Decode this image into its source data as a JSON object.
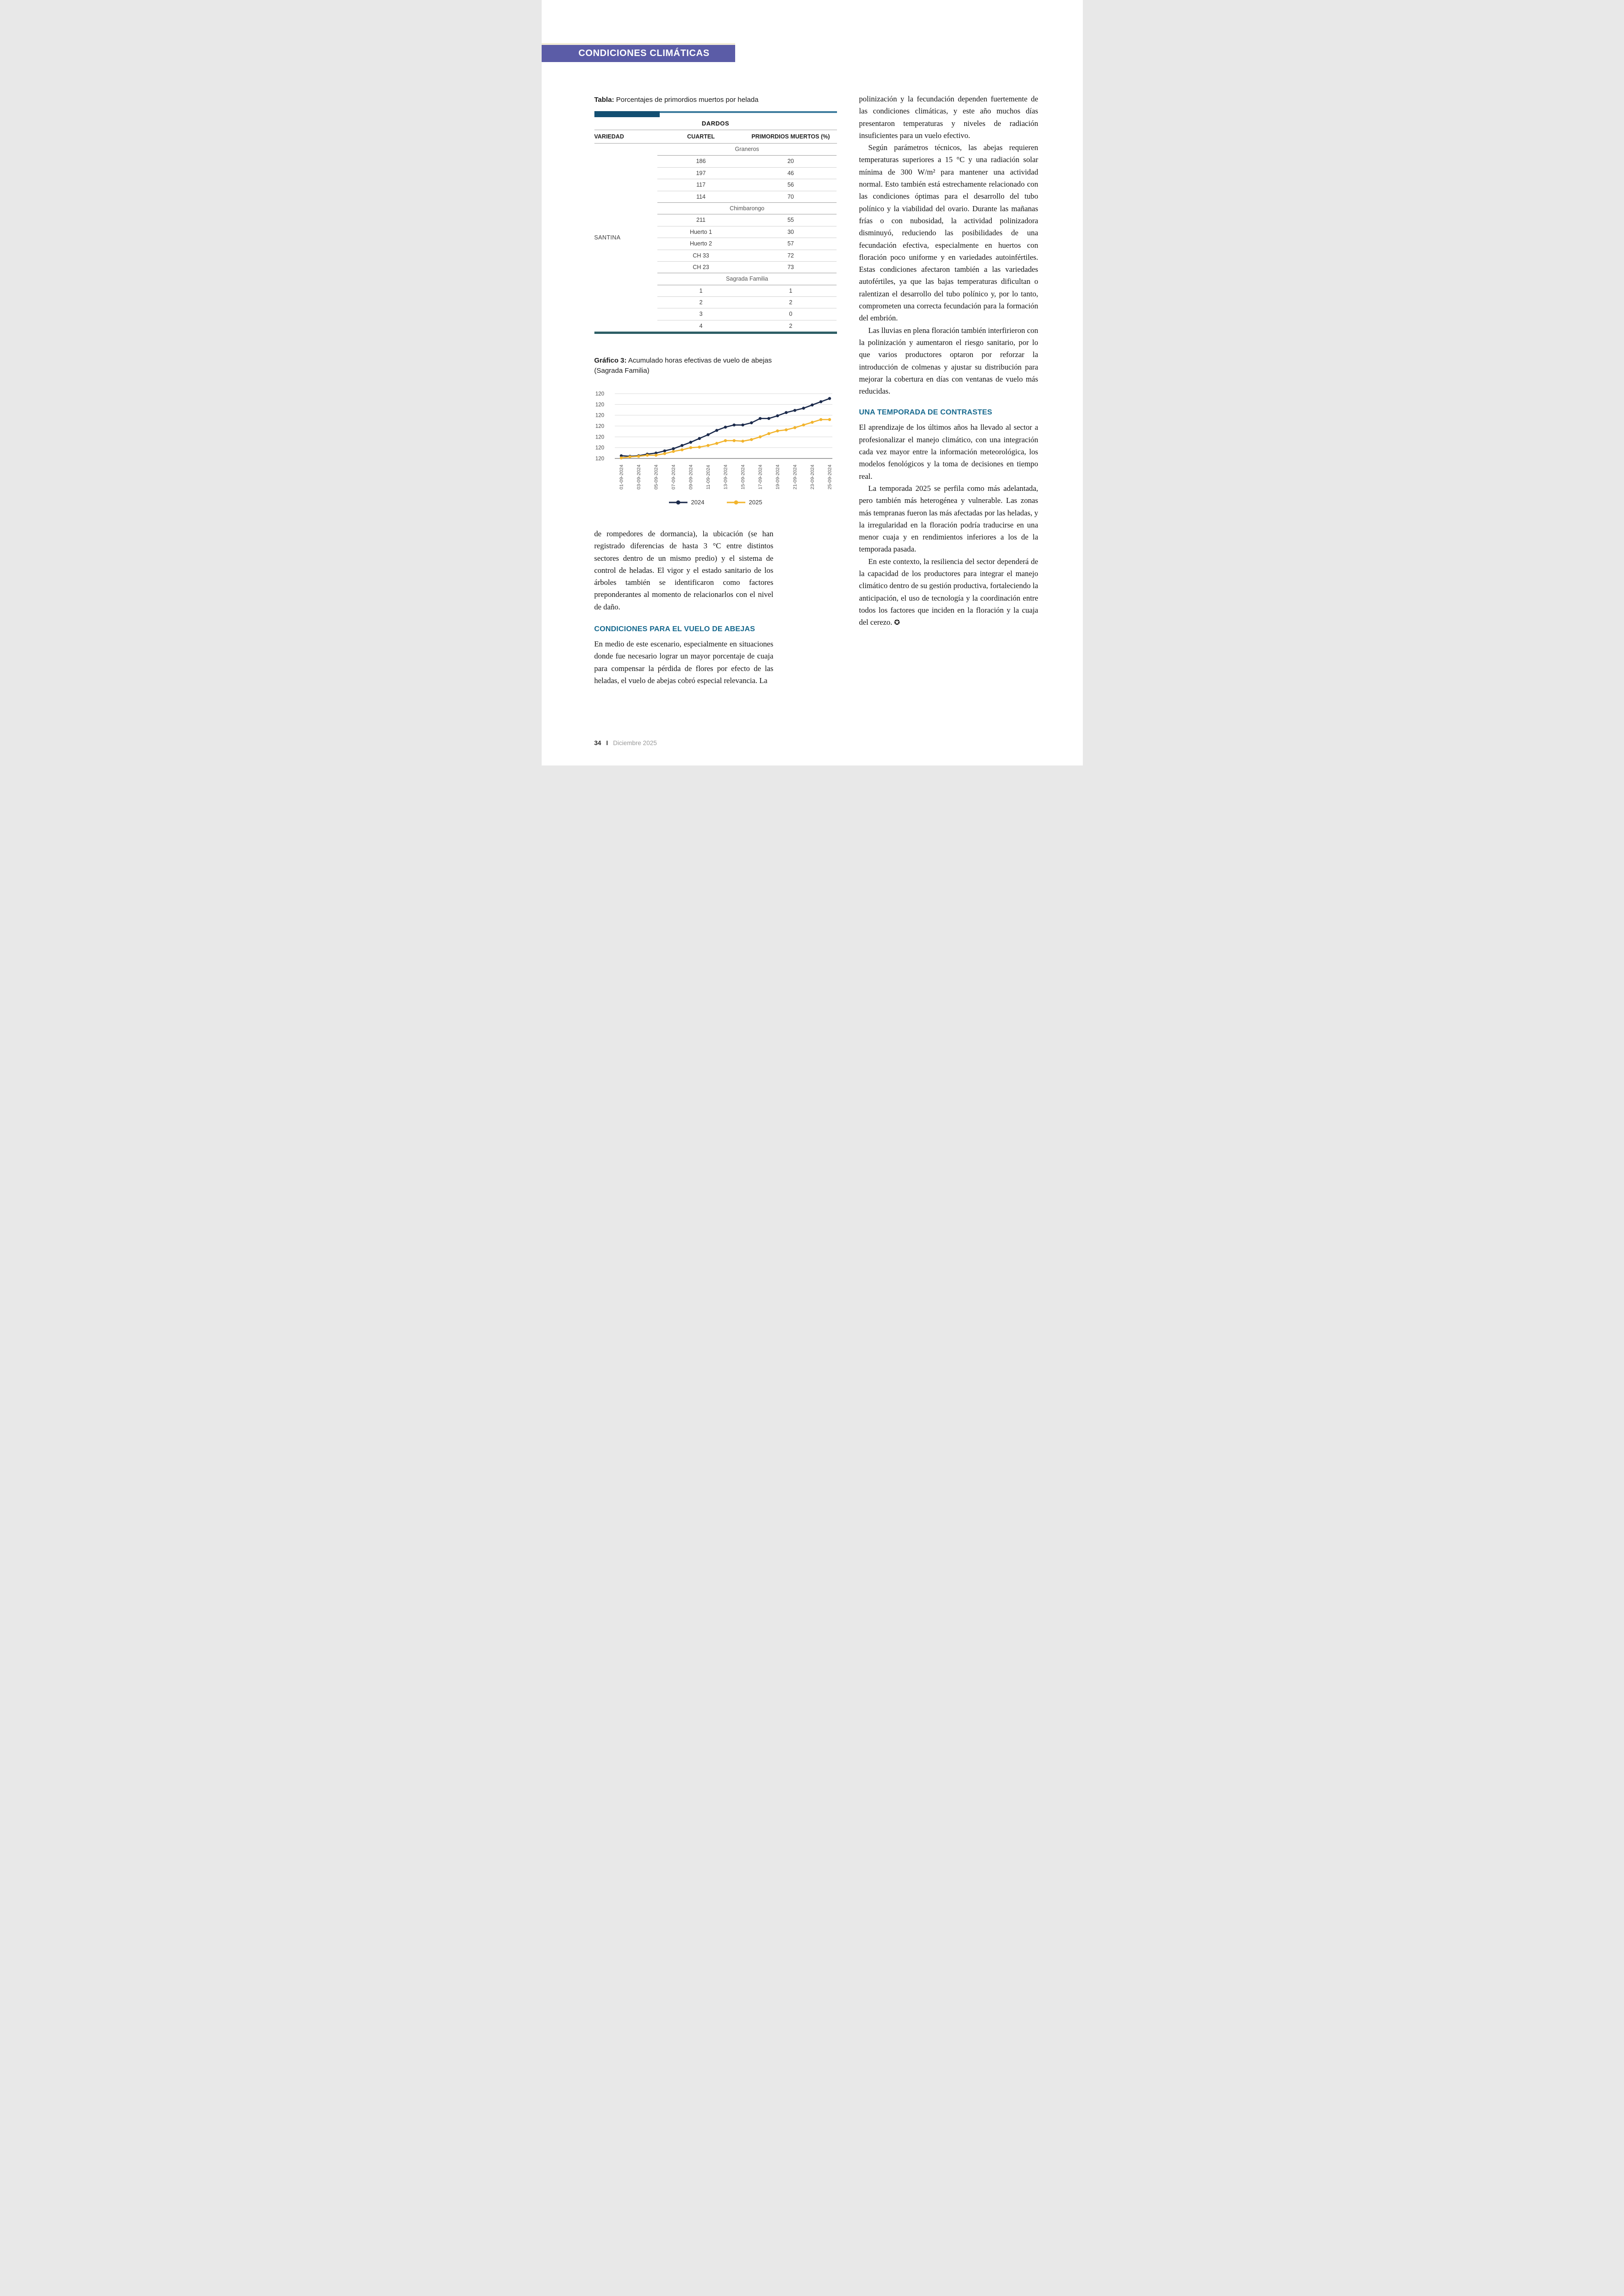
{
  "page": {
    "badge": "CONDICIONES CLIMÁTICAS",
    "footer": {
      "page_number": "34",
      "separator": "I",
      "issue": "Diciembre 2025"
    }
  },
  "colors": {
    "badge_bg": "#5b5ca7",
    "section_heading": "#17698e",
    "table_bar_dark": "#134f72",
    "table_bar_light": "#3f7d9e",
    "table_bottom_bar": "#2e5f66",
    "series_2024": "#1b2a4b",
    "series_2025": "#f2b42d"
  },
  "table": {
    "caption_label": "Tabla:",
    "caption_text": "Porcentajes de primordios muertos por helada",
    "span_header": "DARDOS",
    "columns": [
      "VARIEDAD",
      "CUARTEL",
      "PRIMORDIOS MUERTOS (%)"
    ],
    "variety": "SANTINA",
    "groups": [
      {
        "location": "Graneros",
        "rows": [
          {
            "cuartel": "186",
            "muertos": "20"
          },
          {
            "cuartel": "197",
            "muertos": "46"
          },
          {
            "cuartel": "117",
            "muertos": "56"
          },
          {
            "cuartel": "114",
            "muertos": "70"
          }
        ]
      },
      {
        "location": "Chimbarongo",
        "rows": [
          {
            "cuartel": "211",
            "muertos": "55"
          },
          {
            "cuartel": "Huerto 1",
            "muertos": "30"
          },
          {
            "cuartel": "Huerto 2",
            "muertos": "57"
          },
          {
            "cuartel": "CH 33",
            "muertos": "72"
          },
          {
            "cuartel": "CH 23",
            "muertos": "73"
          }
        ]
      },
      {
        "location": "Sagrada Familia",
        "rows": [
          {
            "cuartel": "1",
            "muertos": "1"
          },
          {
            "cuartel": "2",
            "muertos": "2"
          },
          {
            "cuartel": "3",
            "muertos": "0"
          },
          {
            "cuartel": "4",
            "muertos": "2"
          }
        ]
      }
    ]
  },
  "chart": {
    "caption_label": "Gráfico 3:",
    "caption_text": "Acumulado horas efectivas de vuelo de abejas",
    "caption_line2": "(Sagrada Familia)"
  },
  "chart_data": {
    "type": "line",
    "title": "Gráfico 3: Acumulado horas efectivas de vuelo de abejas (Sagrada Familia)",
    "x": [
      "01-09-2024",
      "02-09-2024",
      "03-09-2024",
      "04-09-2024",
      "05-09-2024",
      "06-09-2024",
      "07-09-2024",
      "08-09-2024",
      "09-09-2024",
      "10-09-2024",
      "11-09-2024",
      "12-09-2024",
      "13-09-2024",
      "14-09-2024",
      "15-09-2024",
      "16-09-2024",
      "17-09-2024",
      "18-09-2024",
      "19-09-2024",
      "20-09-2024",
      "21-09-2024",
      "22-09-2024",
      "23-09-2024",
      "24-09-2024",
      "25-09-2024"
    ],
    "x_tick_labels": [
      "01-09-2024",
      "03-09-2024",
      "05-09-2024",
      "07-09-2024",
      "09-09-2024",
      "11-09-2024",
      "13-09-2024",
      "15-09-2024",
      "17-09-2024",
      "19-09-2024",
      "21-09-2024",
      "23-09-2024",
      "25-09-2024"
    ],
    "y_tick_labels": [
      "120",
      "120",
      "120",
      "120",
      "120",
      "120",
      "120"
    ],
    "ylim": [
      0,
      120
    ],
    "grid": true,
    "legend_position": "bottom",
    "series": [
      {
        "name": "2024",
        "color": "#1b2a4b",
        "values": [
          5,
          4,
          5,
          8,
          10,
          14,
          18,
          24,
          30,
          37,
          44,
          52,
          58,
          62,
          62,
          66,
          74,
          74,
          79,
          85,
          89,
          93,
          99,
          105,
          111
        ]
      },
      {
        "name": "2025",
        "color": "#f2b42d",
        "values": [
          1,
          3,
          4,
          6,
          6,
          9,
          13,
          16,
          20,
          21,
          24,
          28,
          33,
          33,
          32,
          35,
          40,
          46,
          51,
          53,
          57,
          62,
          67,
          72,
          72
        ]
      }
    ]
  },
  "article": {
    "left": {
      "p1": "de rompedores de dormancia), la ubicación (se han registrado diferencias de hasta 3 °C entre distintos sectores dentro de un mismo predio) y el sistema de control de heladas. El vigor y el estado sanitario de los árboles también se identificaron como factores preponderantes al momento de relacionarlos con el nivel de daño.",
      "heading": "CONDICIONES PARA EL VUELO DE ABEJAS",
      "p2": "En medio de este escenario, especialmente en situaciones donde fue necesario lograr un mayor porcentaje de cuaja para compensar la pérdida de flores por efecto de las heladas, el vuelo de abejas cobró especial relevancia. La"
    },
    "right": {
      "p1": "polinización y la fecundación dependen fuertemente de las condiciones climáticas, y este año muchos días presentaron temperaturas y niveles de radiación insuficientes para un vuelo efectivo.",
      "p2": "Según parámetros técnicos, las abejas requieren temperaturas superiores a 15 °C y una radiación solar mínima de 300 W/m² para mantener una actividad normal. Esto también está estrechamente relacionado con las condiciones óptimas para el desarrollo del tubo polínico y la viabilidad del ovario. Durante las mañanas frías o con nubosidad, la actividad polinizadora disminuyó, reduciendo las posibilidades de una fecundación efectiva, especialmente en huertos con floración poco uniforme y en variedades autoinfértiles. Estas condiciones afectaron también a las variedades autofértiles, ya que las bajas temperaturas dificultan o ralentizan el desarrollo del tubo polínico y, por lo tanto, comprometen una correcta fecundación para la formación del embrión.",
      "p3": "Las lluvias en plena floración también interfirieron con la polinización y aumentaron el riesgo sanitario, por lo que varios productores optaron por reforzar la introducción de colmenas y ajustar su distribución para mejorar la cobertura en días con ventanas de vuelo más reducidas.",
      "heading": "UNA TEMPORADA DE CONTRASTES",
      "p4": "El aprendizaje de los últimos años ha llevado al sector a profesionalizar el manejo climático, con una integración cada vez mayor entre la información meteorológica, los modelos fenológicos y la toma de decisiones en tiempo real.",
      "p5": "La temporada 2025 se perfila como más adelantada, pero también más heterogénea y vulnerable. Las zonas más tempranas fueron las más afectadas por las heladas, y la irregularidad en la floración podría traducirse en una menor cuaja y en rendimientos inferiores a los de la temporada pasada.",
      "p6": "En este contexto, la resiliencia del sector dependerá de la capacidad de los productores para integrar el manejo climático dentro de su gestión productiva, fortaleciendo la anticipación, el uso de tecnología y la coordinación entre todos los factores que inciden en la floración y la cuaja del cerezo.",
      "end_mark": "✪"
    }
  }
}
